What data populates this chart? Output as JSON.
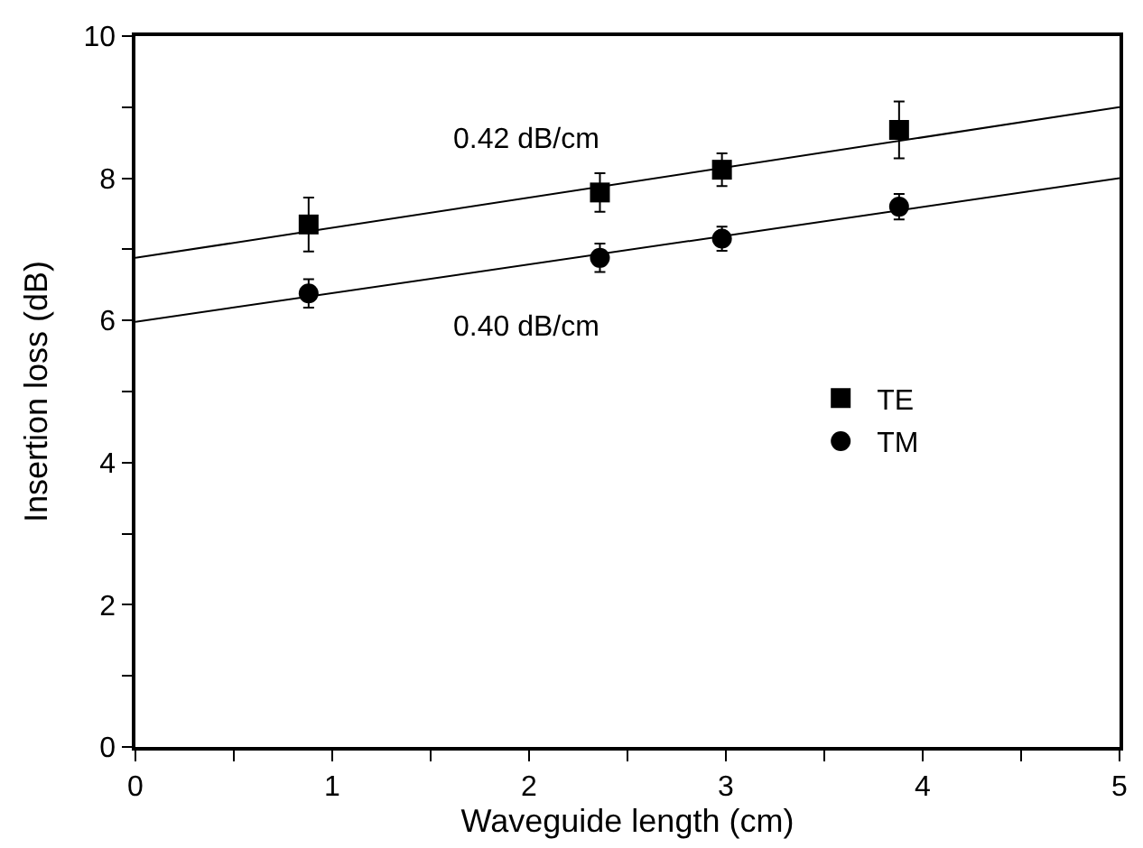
{
  "chart_data": {
    "type": "scatter",
    "xlabel": "Waveguide length (cm)",
    "ylabel": "Insertion loss (dB)",
    "xlim": [
      0,
      5
    ],
    "ylim": [
      0,
      10
    ],
    "xticks": [
      0,
      {
        "value": 0.5,
        "label": null
      },
      1,
      {
        "value": 1.5,
        "label": null
      },
      2,
      {
        "value": 2.5,
        "label": null
      },
      3,
      {
        "value": 3.5,
        "label": null
      },
      4,
      {
        "value": 4.5,
        "label": null
      },
      5
    ],
    "yticks": [
      0,
      {
        "value": 1,
        "label": null
      },
      2,
      {
        "value": 3,
        "label": null
      },
      4,
      {
        "value": 5,
        "label": null
      },
      6,
      {
        "value": 7,
        "label": null
      },
      8,
      {
        "value": 9,
        "label": null
      },
      10
    ],
    "legend": "center right",
    "series": [
      {
        "name": "TE",
        "color": "#000000",
        "marker": "square",
        "x": [
          0.88,
          2.36,
          2.98,
          3.88
        ],
        "values": [
          7.35,
          7.8,
          8.12,
          8.68
        ],
        "errors": [
          0.38,
          0.27,
          0.23,
          0.4
        ]
      },
      {
        "name": "TM",
        "color": "#000000",
        "marker": "circle",
        "x": [
          0.88,
          2.36,
          2.98,
          3.88
        ],
        "values": [
          6.38,
          6.88,
          7.15,
          7.6
        ],
        "errors": [
          0.2,
          0.2,
          0.17,
          0.18
        ]
      },
      {
        "type": "line",
        "color": "#000000",
        "x": [
          0,
          5
        ],
        "values": [
          6.88,
          9.0
        ]
      },
      {
        "type": "line",
        "color": "#000000",
        "x": [
          0,
          5
        ],
        "values": [
          5.98,
          8.0
        ]
      }
    ],
    "annotations": [
      "0.42 dB/cm",
      "0.40 dB/cm"
    ]
  }
}
